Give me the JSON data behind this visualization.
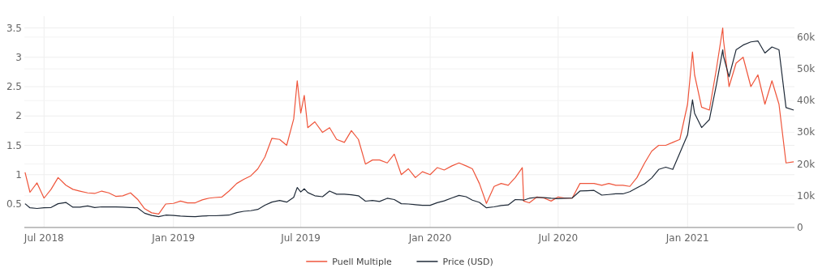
{
  "chart_data": {
    "type": "line",
    "x": [
      "2018-06-04",
      "2018-06-11",
      "2018-06-21",
      "2018-07-01",
      "2018-07-11",
      "2018-07-21",
      "2018-08-01",
      "2018-08-11",
      "2018-08-21",
      "2018-09-01",
      "2018-09-11",
      "2018-09-21",
      "2018-10-01",
      "2018-10-11",
      "2018-10-21",
      "2018-11-01",
      "2018-11-11",
      "2018-11-21",
      "2018-12-01",
      "2018-12-11",
      "2018-12-21",
      "2019-01-01",
      "2019-01-11",
      "2019-01-21",
      "2019-02-01",
      "2019-02-11",
      "2019-02-21",
      "2019-03-01",
      "2019-03-11",
      "2019-03-21",
      "2019-04-01",
      "2019-04-11",
      "2019-04-21",
      "2019-05-01",
      "2019-05-11",
      "2019-05-21",
      "2019-06-01",
      "2019-06-11",
      "2019-06-21",
      "2019-06-26",
      "2019-07-01",
      "2019-07-06",
      "2019-07-11",
      "2019-07-21",
      "2019-08-01",
      "2019-08-11",
      "2019-08-21",
      "2019-09-01",
      "2019-09-11",
      "2019-09-21",
      "2019-10-01",
      "2019-10-11",
      "2019-10-21",
      "2019-11-01",
      "2019-11-11",
      "2019-11-21",
      "2019-12-01",
      "2019-12-11",
      "2019-12-21",
      "2020-01-01",
      "2020-01-11",
      "2020-01-21",
      "2020-02-01",
      "2020-02-11",
      "2020-02-21",
      "2020-03-01",
      "2020-03-11",
      "2020-03-21",
      "2020-04-01",
      "2020-04-11",
      "2020-04-21",
      "2020-05-01",
      "2020-05-11",
      "2020-05-13",
      "2020-05-21",
      "2020-06-01",
      "2020-06-11",
      "2020-06-21",
      "2020-07-01",
      "2020-07-11",
      "2020-07-21",
      "2020-08-01",
      "2020-08-11",
      "2020-08-21",
      "2020-09-01",
      "2020-09-11",
      "2020-09-21",
      "2020-10-01",
      "2020-10-11",
      "2020-10-21",
      "2020-11-01",
      "2020-11-11",
      "2020-11-21",
      "2020-12-01",
      "2020-12-11",
      "2020-12-21",
      "2021-01-01",
      "2021-01-08",
      "2021-01-11",
      "2021-01-21",
      "2021-02-01",
      "2021-02-11",
      "2021-02-20",
      "2021-02-21",
      "2021-03-01",
      "2021-03-11",
      "2021-03-21",
      "2021-04-01",
      "2021-04-11",
      "2021-04-21",
      "2021-05-01",
      "2021-05-11",
      "2021-05-21",
      "2021-06-01"
    ],
    "series": [
      {
        "name": "Puell Multiple",
        "color": "#ef553b",
        "axis": "y",
        "values": [
          1.04,
          0.7,
          0.86,
          0.6,
          0.75,
          0.95,
          0.82,
          0.75,
          0.72,
          0.69,
          0.68,
          0.72,
          0.69,
          0.63,
          0.64,
          0.69,
          0.58,
          0.42,
          0.35,
          0.33,
          0.5,
          0.51,
          0.55,
          0.52,
          0.52,
          0.57,
          0.6,
          0.61,
          0.62,
          0.72,
          0.85,
          0.92,
          0.98,
          1.1,
          1.3,
          1.62,
          1.6,
          1.5,
          1.95,
          2.6,
          2.05,
          2.35,
          1.8,
          1.9,
          1.72,
          1.8,
          1.6,
          1.55,
          1.75,
          1.6,
          1.18,
          1.25,
          1.25,
          1.2,
          1.35,
          1.0,
          1.1,
          0.95,
          1.05,
          1.0,
          1.12,
          1.08,
          1.15,
          1.2,
          1.15,
          1.1,
          0.85,
          0.51,
          0.8,
          0.85,
          0.82,
          0.95,
          1.12,
          0.55,
          0.52,
          0.62,
          0.6,
          0.55,
          0.62,
          0.6,
          0.6,
          0.85,
          0.85,
          0.85,
          0.82,
          0.85,
          0.82,
          0.82,
          0.8,
          0.95,
          1.2,
          1.4,
          1.5,
          1.5,
          1.55,
          1.6,
          2.2,
          3.09,
          2.7,
          2.15,
          2.1,
          2.8,
          3.5,
          3.3,
          2.5,
          2.9,
          3.0,
          2.5,
          2.7,
          2.2,
          2.6,
          2.2,
          1.2,
          1.22
        ]
      },
      {
        "name": "Price (USD)",
        "color": "#1f2a38",
        "axis": "y2",
        "values": [
          7500,
          6200,
          6000,
          6200,
          6300,
          7500,
          7900,
          6400,
          6400,
          6800,
          6300,
          6500,
          6500,
          6500,
          6400,
          6300,
          6200,
          4500,
          3800,
          3400,
          3900,
          3800,
          3600,
          3500,
          3400,
          3600,
          3700,
          3700,
          3800,
          3900,
          4700,
          5100,
          5300,
          5700,
          7000,
          8000,
          8500,
          8000,
          9500,
          12600,
          11200,
          12200,
          11000,
          10000,
          9700,
          11500,
          10500,
          10500,
          10300,
          10000,
          8300,
          8500,
          8200,
          9200,
          8800,
          7500,
          7400,
          7200,
          7000,
          7000,
          7800,
          8400,
          9300,
          10100,
          9700,
          8600,
          7900,
          6200,
          6500,
          6900,
          7100,
          8800,
          8700,
          8600,
          9200,
          9500,
          9400,
          9200,
          9100,
          9200,
          9300,
          11500,
          11600,
          11700,
          10200,
          10400,
          10600,
          10600,
          11300,
          12500,
          13800,
          15600,
          18300,
          19000,
          18300,
          23500,
          29200,
          40200,
          36000,
          31500,
          34000,
          45000,
          56000,
          54000,
          47500,
          56000,
          57500,
          58500,
          58800,
          55000,
          56900,
          56000,
          37800,
          37000
        ]
      }
    ],
    "xlim": [
      "2018-06-03",
      "2021-06-02"
    ],
    "xticks": [
      {
        "value": "2018-07-01",
        "label": "Jul 2018"
      },
      {
        "value": "2019-01-01",
        "label": "Jan 2019"
      },
      {
        "value": "2019-07-01",
        "label": "Jul 2019"
      },
      {
        "value": "2020-01-01",
        "label": "Jan 2020"
      },
      {
        "value": "2020-07-01",
        "label": "Jul 2020"
      },
      {
        "value": "2021-01-01",
        "label": "Jan 2021"
      }
    ],
    "ylim": [
      0.1,
      3.7
    ],
    "yticks": [
      0.5,
      1,
      1.5,
      2,
      2.5,
      3,
      3.5
    ],
    "y2lim": [
      0,
      66600
    ],
    "y2ticks": [
      0,
      {
        "value": 10000,
        "label": "10k"
      },
      {
        "value": 20000,
        "label": "20k"
      },
      {
        "value": 30000,
        "label": "30k"
      },
      {
        "value": 40000,
        "label": "40k"
      },
      {
        "value": 50000,
        "label": "50k"
      },
      {
        "value": 60000,
        "label": "60k"
      }
    ],
    "grid": true,
    "legend": "bottom"
  }
}
